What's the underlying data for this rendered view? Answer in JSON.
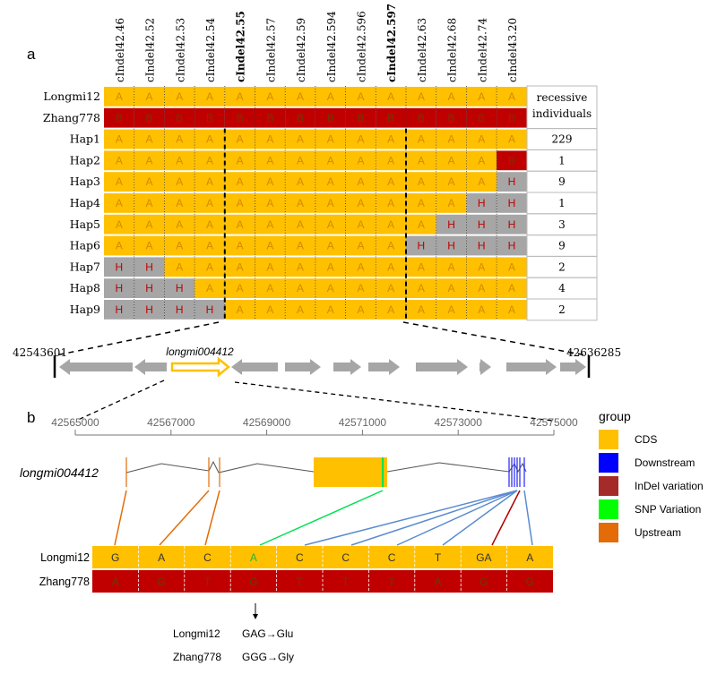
{
  "panel_a": {
    "label": "a",
    "markers": [
      "cIndel42.46",
      "cIndel42.52",
      "cIndel42.53",
      "cIndel42.54",
      "cIndel42.55",
      "cIndel42.57",
      "cIndel42.59",
      "cIndel42.594",
      "cIndel42.596",
      "cIndel42.597",
      "cIndel42.63",
      "cIndel42.68",
      "cIndel42.74",
      "cIndel43.20"
    ],
    "bold_markers": [
      "cIndel42.55",
      "cIndel42.597"
    ],
    "recessive_header": [
      "recessive",
      "individuals"
    ],
    "rows": [
      {
        "name": "Longmi12",
        "cells": [
          "A",
          "A",
          "A",
          "A",
          "A",
          "A",
          "A",
          "A",
          "A",
          "A",
          "A",
          "A",
          "A",
          "A"
        ],
        "count": ""
      },
      {
        "name": "Zhang778",
        "cells": [
          "B",
          "B",
          "B",
          "B",
          "B",
          "B",
          "B",
          "B",
          "B",
          "B",
          "B",
          "B",
          "B",
          "B"
        ],
        "count": ""
      },
      {
        "name": "Hap1",
        "cells": [
          "A",
          "A",
          "A",
          "A",
          "A",
          "A",
          "A",
          "A",
          "A",
          "A",
          "A",
          "A",
          "A",
          "A"
        ],
        "count": "229"
      },
      {
        "name": "Hap2",
        "cells": [
          "A",
          "A",
          "A",
          "A",
          "A",
          "A",
          "A",
          "A",
          "A",
          "A",
          "A",
          "A",
          "A",
          "B"
        ],
        "count": "1"
      },
      {
        "name": "Hap3",
        "cells": [
          "A",
          "A",
          "A",
          "A",
          "A",
          "A",
          "A",
          "A",
          "A",
          "A",
          "A",
          "A",
          "A",
          "H"
        ],
        "count": "9"
      },
      {
        "name": "Hap4",
        "cells": [
          "A",
          "A",
          "A",
          "A",
          "A",
          "A",
          "A",
          "A",
          "A",
          "A",
          "A",
          "A",
          "H",
          "H"
        ],
        "count": "1"
      },
      {
        "name": "Hap5",
        "cells": [
          "A",
          "A",
          "A",
          "A",
          "A",
          "A",
          "A",
          "A",
          "A",
          "A",
          "A",
          "H",
          "H",
          "H"
        ],
        "count": "3"
      },
      {
        "name": "Hap6",
        "cells": [
          "A",
          "A",
          "A",
          "A",
          "A",
          "A",
          "A",
          "A",
          "A",
          "A",
          "H",
          "H",
          "H",
          "H"
        ],
        "count": "9"
      },
      {
        "name": "Hap7",
        "cells": [
          "H",
          "H",
          "A",
          "A",
          "A",
          "A",
          "A",
          "A",
          "A",
          "A",
          "A",
          "A",
          "A",
          "A"
        ],
        "count": "2"
      },
      {
        "name": "Hap8",
        "cells": [
          "H",
          "H",
          "H",
          "A",
          "A",
          "A",
          "A",
          "A",
          "A",
          "A",
          "A",
          "A",
          "A",
          "A"
        ],
        "count": "4"
      },
      {
        "name": "Hap9",
        "cells": [
          "H",
          "H",
          "H",
          "H",
          "A",
          "A",
          "A",
          "A",
          "A",
          "A",
          "A",
          "A",
          "A",
          "A"
        ],
        "count": "2"
      }
    ],
    "region_start": "42543601",
    "region_end": "42636285",
    "gene_name": "longmi004412"
  },
  "panel_b": {
    "label": "b",
    "axis_ticks": [
      "42565000",
      "42567000",
      "42569000",
      "42571000",
      "42573000",
      "42575000"
    ],
    "gene_name": "longmi004412",
    "seq_rows": [
      {
        "name": "Longmi12",
        "bases": [
          "G",
          "A",
          "C",
          "A",
          "C",
          "C",
          "C",
          "T",
          "GA",
          "A"
        ]
      },
      {
        "name": "Zhang778",
        "bases": [
          "A",
          "G",
          "T",
          "G",
          "T",
          "T",
          "T",
          "A",
          "G",
          "G"
        ]
      }
    ],
    "codon_change": [
      {
        "name": "Longmi12",
        "change": "GAG→Glu"
      },
      {
        "name": "Zhang778",
        "change": "GGG→Gly"
      }
    ],
    "legend": {
      "title": "group",
      "items": [
        {
          "label": "CDS",
          "color": "#FFC000"
        },
        {
          "label": "Downstream",
          "color": "#0000FF"
        },
        {
          "label": "InDel variation",
          "color": "#A52A2A"
        },
        {
          "label": "SNP Variation",
          "color": "#00FF00"
        },
        {
          "label": "Upstream",
          "color": "#E36C09"
        }
      ]
    }
  },
  "colors": {
    "A": "#FFC000",
    "B": "#C00000",
    "H": "#A6A6A6",
    "A_text": "#D48A00",
    "B_text": "#6B3A00",
    "H_text": "#C00000"
  }
}
